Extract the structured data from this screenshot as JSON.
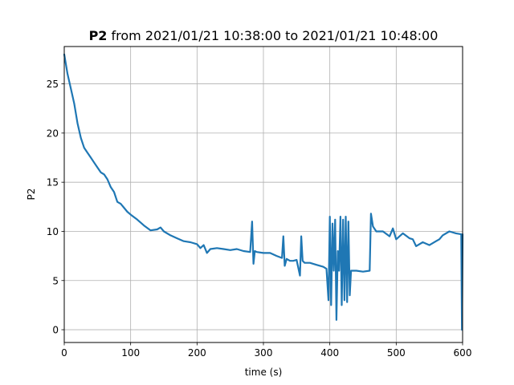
{
  "chart_data": {
    "type": "line",
    "title_bold": "P2",
    "title_rest": " from 2021/01/21 10:38:00 to 2021/01/21 10:48:00",
    "xlabel": "time (s)",
    "ylabel": "P2",
    "xlim": [
      0,
      600
    ],
    "ylim": [
      -1.3,
      28.8
    ],
    "xticks": [
      0,
      100,
      200,
      300,
      400,
      500,
      600
    ],
    "yticks": [
      0,
      5,
      10,
      15,
      20,
      25
    ],
    "grid": true,
    "series_color": "#1f77b4",
    "x": [
      0,
      5,
      10,
      15,
      20,
      25,
      30,
      35,
      40,
      45,
      50,
      55,
      60,
      65,
      70,
      75,
      80,
      85,
      90,
      95,
      100,
      110,
      120,
      130,
      140,
      145,
      150,
      160,
      170,
      180,
      190,
      200,
      205,
      210,
      215,
      220,
      230,
      240,
      250,
      260,
      270,
      280,
      283,
      285,
      287,
      290,
      300,
      310,
      320,
      328,
      330,
      332,
      335,
      340,
      345,
      350,
      355,
      357,
      359,
      362,
      370,
      380,
      390,
      395,
      398,
      400,
      402,
      404,
      406,
      408,
      410,
      412,
      414,
      416,
      418,
      420,
      422,
      424,
      426,
      428,
      430,
      432,
      435,
      440,
      450,
      460,
      462,
      465,
      470,
      480,
      490,
      495,
      500,
      510,
      520,
      525,
      530,
      540,
      550,
      560,
      565,
      570,
      580,
      590,
      598,
      599,
      600
    ],
    "y": [
      28.0,
      26.0,
      24.5,
      23.0,
      21.0,
      19.5,
      18.5,
      18.0,
      17.5,
      17.0,
      16.5,
      16.0,
      15.8,
      15.3,
      14.5,
      14.0,
      13.0,
      12.8,
      12.4,
      12.0,
      11.7,
      11.2,
      10.6,
      10.1,
      10.2,
      10.4,
      10.0,
      9.6,
      9.3,
      9.0,
      8.9,
      8.7,
      8.3,
      8.6,
      7.8,
      8.2,
      8.3,
      8.2,
      8.1,
      8.2,
      8.0,
      7.9,
      11.0,
      6.7,
      8.0,
      7.9,
      7.8,
      7.8,
      7.5,
      7.3,
      9.5,
      6.5,
      7.2,
      7.0,
      7.0,
      7.1,
      5.5,
      9.5,
      7.0,
      6.8,
      6.8,
      6.6,
      6.4,
      6.2,
      3.0,
      11.5,
      2.5,
      10.8,
      6.0,
      11.2,
      1.0,
      8.0,
      6.0,
      11.5,
      2.5,
      11.2,
      3.0,
      11.5,
      2.8,
      11.0,
      3.5,
      6.0,
      6.0,
      6.0,
      5.9,
      6.0,
      11.8,
      10.5,
      10.0,
      10.0,
      9.5,
      10.3,
      9.2,
      9.8,
      9.3,
      9.2,
      8.5,
      8.9,
      8.6,
      9.0,
      9.2,
      9.6,
      10.0,
      9.8,
      9.7,
      0.0,
      9.7
    ]
  }
}
